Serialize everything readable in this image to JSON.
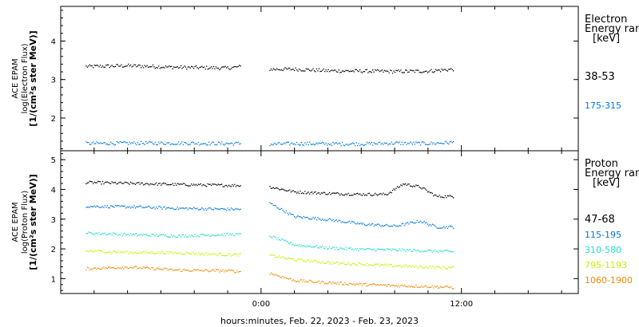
{
  "chart_data": {
    "type": "scatter",
    "xlabel": "hours:minutes, Feb. 22, 2023 - Feb. 23, 2023",
    "x_ticks": [
      "0:00",
      "12:00"
    ],
    "x_units": "hours relative to Feb. 23, 2023 00:00",
    "x_range": [
      -12,
      19
    ],
    "panels": [
      {
        "id": "electron",
        "ylabel_lines": [
          "ACE EPAM",
          "log(Electron Flux)",
          "[1/(cm²s ster MeV)]"
        ],
        "ylim": [
          1.15,
          4.9
        ],
        "y_ticks": [
          "2",
          "3",
          "4"
        ],
        "legend_title": [
          "Electron",
          "Energy ranges",
          "[keV]"
        ],
        "series": [
          {
            "name": "38-53",
            "color": "#000000",
            "x": [
              -10.5,
              -8,
              -5,
              -2,
              -1.2,
              0.5,
              2,
              4,
              6,
              8,
              10,
              11.5
            ],
            "y": [
              3.35,
              3.37,
              3.33,
              3.31,
              3.35,
              3.28,
              3.28,
              3.24,
              3.23,
              3.22,
              3.23,
              3.28
            ]
          },
          {
            "name": "175-315",
            "color": "#0077dd",
            "x": [
              -10.5,
              -8,
              -5,
              -2,
              -1.2,
              0.5,
              2,
              4,
              6,
              8,
              10,
              11.5
            ],
            "y": [
              1.35,
              1.36,
              1.36,
              1.35,
              1.35,
              1.33,
              1.35,
              1.34,
              1.34,
              1.36,
              1.35,
              1.38
            ]
          }
        ]
      },
      {
        "id": "proton",
        "ylabel_lines": [
          "ACE EPAM",
          "log(Proton Flux)",
          "[1/(cm²s ster MeV)]"
        ],
        "ylim": [
          0.5,
          5.3
        ],
        "y_ticks": [
          "1",
          "2",
          "3",
          "4",
          "5"
        ],
        "legend_title": [
          "Proton",
          "Energy ranges",
          "[keV]"
        ],
        "series": [
          {
            "name": "47-68",
            "color": "#000000",
            "x": [
              -10.5,
              -8,
              -5,
              -2,
              -1.2,
              0.5,
              2,
              4,
              6,
              7.5,
              8.5,
              9.5,
              10.5,
              11.5
            ],
            "y": [
              4.25,
              4.22,
              4.18,
              4.15,
              4.15,
              4.1,
              3.93,
              3.88,
              3.85,
              3.85,
              4.2,
              4.1,
              3.78,
              3.78
            ]
          },
          {
            "name": "115-195",
            "color": "#0077dd",
            "x": [
              -10.5,
              -8,
              -5,
              -2,
              -1.2,
              0.5,
              2,
              4,
              6,
              8,
              9.5,
              10.5,
              11.5
            ],
            "y": [
              3.45,
              3.43,
              3.38,
              3.35,
              3.35,
              3.55,
              3.1,
              3.0,
              2.85,
              2.78,
              2.95,
              2.75,
              2.75
            ]
          },
          {
            "name": "310-580",
            "color": "#22ddcc",
            "x": [
              -10.5,
              -8,
              -5,
              -2,
              -1.2,
              0.5,
              2,
              4,
              6,
              8,
              10,
              11.5
            ],
            "y": [
              2.55,
              2.5,
              2.45,
              2.5,
              2.5,
              2.45,
              2.15,
              2.05,
              2.0,
              1.98,
              1.95,
              1.92
            ]
          },
          {
            "name": "795-1193",
            "color": "#ccee00",
            "x": [
              -10.5,
              -8,
              -5,
              -2,
              -1.2,
              0.5,
              2,
              4,
              6,
              8,
              10,
              11.5
            ],
            "y": [
              1.95,
              1.9,
              1.88,
              1.82,
              1.82,
              1.8,
              1.65,
              1.55,
              1.5,
              1.45,
              1.4,
              1.38
            ]
          },
          {
            "name": "1060-1900",
            "color": "#ee8800",
            "x": [
              -10.5,
              -8,
              -5,
              -2,
              -1.2,
              0.5,
              2,
              4,
              6,
              8,
              10,
              11.5
            ],
            "y": [
              1.35,
              1.4,
              1.3,
              1.28,
              1.25,
              1.2,
              0.95,
              0.88,
              0.82,
              0.78,
              0.75,
              0.72
            ]
          }
        ]
      }
    ]
  }
}
